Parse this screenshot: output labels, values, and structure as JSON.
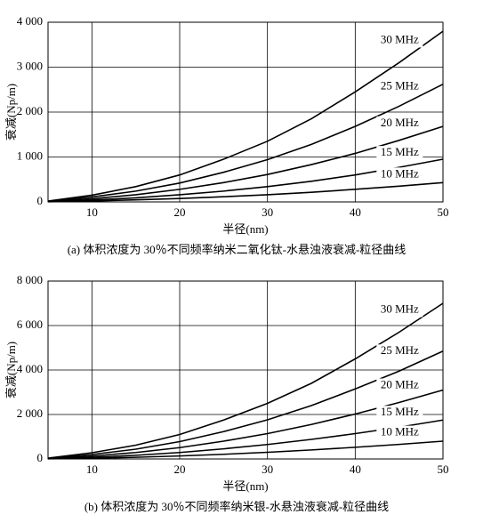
{
  "chart_data": [
    {
      "type": "line",
      "title": "(a) 体积浓度为 30％不同频率纳米二氧化钛-水悬浊液衰减-粒径曲线",
      "xlabel": "半径(nm)",
      "ylabel": "衰减(Np/m)",
      "x": [
        5,
        10,
        15,
        20,
        25,
        30,
        35,
        40,
        45,
        50
      ],
      "series": [
        {
          "name": "30 MHz",
          "color": "#000000",
          "values": [
            20,
            150,
            340,
            600,
            950,
            1350,
            1850,
            2450,
            3100,
            3800
          ]
        },
        {
          "name": "25 MHz",
          "color": "#000000",
          "values": [
            15,
            110,
            240,
            420,
            660,
            940,
            1280,
            1680,
            2130,
            2620
          ]
        },
        {
          "name": "20 MHz",
          "color": "#000000",
          "values": [
            10,
            70,
            160,
            280,
            430,
            610,
            830,
            1080,
            1370,
            1680
          ]
        },
        {
          "name": "15 MHz",
          "color": "#000000",
          "values": [
            5,
            40,
            90,
            160,
            240,
            340,
            460,
            600,
            770,
            950
          ]
        },
        {
          "name": "10 MHz",
          "color": "#000000",
          "values": [
            3,
            20,
            45,
            75,
            115,
            160,
            215,
            280,
            350,
            430
          ]
        }
      ],
      "xlim": [
        5,
        50
      ],
      "ylim": [
        0,
        4000
      ],
      "xticks": [
        10,
        20,
        30,
        40,
        50
      ],
      "yticks": [
        0,
        {
          "value": 1000,
          "label": "1 000"
        },
        {
          "value": 2000,
          "label": "2 000"
        },
        {
          "value": 3000,
          "label": "3 000"
        },
        {
          "value": 4000,
          "label": "4 000"
        }
      ],
      "grid": true
    },
    {
      "type": "line",
      "title": "(b) 体积浓度为 30％不同频率纳米银-水悬浊液衰减-粒径曲线",
      "xlabel": "半径(nm)",
      "ylabel": "衰减(Np/m)",
      "x": [
        5,
        10,
        15,
        20,
        25,
        30,
        35,
        40,
        45,
        50
      ],
      "series": [
        {
          "name": "30 MHz",
          "color": "#000000",
          "values": [
            40,
            280,
            620,
            1100,
            1750,
            2500,
            3400,
            4500,
            5700,
            7000
          ]
        },
        {
          "name": "25 MHz",
          "color": "#000000",
          "values": [
            30,
            200,
            440,
            780,
            1230,
            1760,
            2400,
            3150,
            3950,
            4850
          ]
        },
        {
          "name": "20 MHz",
          "color": "#000000",
          "values": [
            20,
            130,
            290,
            510,
            800,
            1140,
            1550,
            2020,
            2540,
            3100
          ]
        },
        {
          "name": "15 MHz",
          "color": "#000000",
          "values": [
            10,
            75,
            165,
            290,
            455,
            650,
            880,
            1140,
            1430,
            1750
          ]
        },
        {
          "name": "10 MHz",
          "color": "#000000",
          "values": [
            5,
            35,
            75,
            135,
            210,
            300,
            405,
            525,
            655,
            800
          ]
        }
      ],
      "xlim": [
        5,
        50
      ],
      "ylim": [
        0,
        8000
      ],
      "xticks": [
        10,
        20,
        30,
        40,
        50
      ],
      "yticks": [
        0,
        {
          "value": 2000,
          "label": "2 000"
        },
        {
          "value": 4000,
          "label": "4 000"
        },
        {
          "value": 6000,
          "label": "6 000"
        },
        {
          "value": 8000,
          "label": "8 000"
        }
      ],
      "grid": true
    }
  ]
}
